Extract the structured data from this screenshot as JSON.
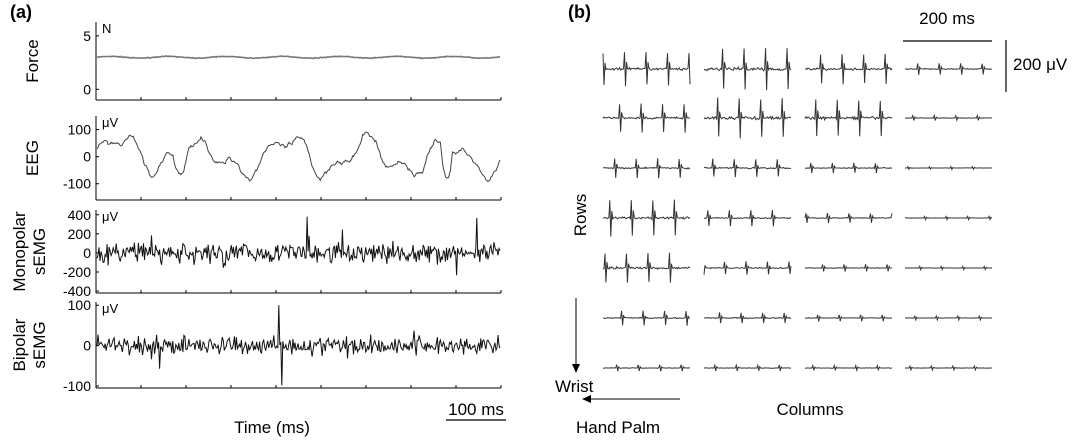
{
  "panel_a_label": "(a)",
  "panel_b_label": "(b)",
  "chart_data": [
    {
      "type": "line",
      "panel": "(a)",
      "xlabel": "Time (ms)",
      "scale_bar": "100 ms",
      "series": [
        {
          "name": "Force",
          "unit": "N",
          "yticks": [
            "5",
            "0"
          ],
          "ylim": [
            -1,
            6.3
          ],
          "level": 3.0,
          "color": "#777777"
        },
        {
          "name": "EEG",
          "unit": "μV",
          "yticks": [
            "100",
            "0",
            "-100"
          ],
          "ylim": [
            -160,
            150
          ],
          "color": "#444444"
        },
        {
          "name_lines": [
            "Monopolar",
            "sEMG"
          ],
          "unit": "μV",
          "yticks": [
            "400",
            "200",
            "0",
            "-200",
            "-400"
          ],
          "ylim": [
            -420,
            450
          ],
          "color": "#111111"
        },
        {
          "name_lines": [
            "Bipolar",
            "sEMG"
          ],
          "unit": "μV",
          "yticks": [
            "100",
            "0",
            "-100"
          ],
          "ylim": [
            -105,
            108
          ],
          "color": "#111111"
        }
      ]
    },
    {
      "type": "line",
      "panel": "(b)",
      "time_scale_bar": "200 ms",
      "amplitude_scale_bar": "200 μV",
      "row_axis_label": "Rows",
      "row_direction_label": "Wrist",
      "column_axis_label": "Columns",
      "column_direction_label": "Hand Palm",
      "grid": {
        "rows": 7,
        "columns": 4
      },
      "activity_amplitude": [
        [
          1.0,
          1.3,
          0.9,
          0.35
        ],
        [
          0.9,
          1.2,
          1.1,
          0.15
        ],
        [
          0.6,
          0.55,
          0.3,
          0.08
        ],
        [
          1.1,
          0.5,
          0.3,
          0.1
        ],
        [
          0.9,
          0.4,
          0.22,
          0.1
        ],
        [
          0.45,
          0.32,
          0.2,
          0.12
        ],
        [
          0.2,
          0.18,
          0.15,
          0.12
        ]
      ]
    }
  ]
}
